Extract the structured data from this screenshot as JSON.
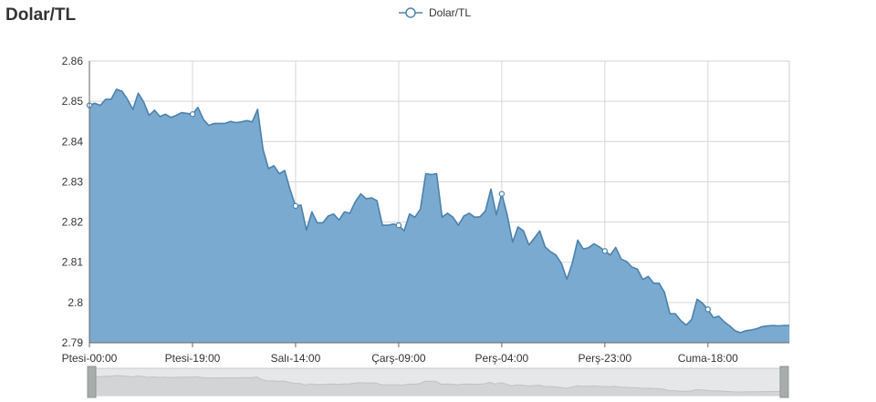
{
  "page": {
    "title": "Dolar/TL"
  },
  "chart_data": {
    "type": "area",
    "title": "Dolar/TL",
    "xlabel": "",
    "ylabel": "",
    "ylim": [
      2.79,
      2.86
    ],
    "y_ticks": [
      "2.86",
      "2.85",
      "2.84",
      "2.83",
      "2.82",
      "2.81",
      "2.8",
      "2.79"
    ],
    "y_tick_values": [
      2.86,
      2.85,
      2.84,
      2.83,
      2.82,
      2.81,
      2.8,
      2.79
    ],
    "x_ticks": [
      "Ptesi-00:00",
      "Ptesi-19:00",
      "Salı-14:00",
      "Çarş-09:00",
      "Perş-04:00",
      "Perş-23:00",
      "Cuma-18:00"
    ],
    "x_tick_values": [
      0,
      19,
      38,
      57,
      76,
      95,
      114
    ],
    "xlim": [
      0,
      129
    ],
    "grid": true,
    "legend": {
      "position": "top-center"
    },
    "series": [
      {
        "name": "Dolar/TL",
        "color": "#4a82ad",
        "fill": "#7aaad0",
        "marker_x": [
          0,
          19,
          38,
          57,
          76,
          95,
          114
        ],
        "x": [
          0,
          1,
          2,
          3,
          4,
          5,
          6,
          7,
          8,
          9,
          10,
          11,
          12,
          13,
          14,
          15,
          16,
          17,
          18,
          19,
          20,
          21,
          22,
          23,
          24,
          25,
          26,
          27,
          28,
          29,
          30,
          31,
          32,
          33,
          34,
          35,
          36,
          37,
          38,
          39,
          40,
          41,
          42,
          43,
          44,
          45,
          46,
          47,
          48,
          49,
          50,
          51,
          52,
          53,
          54,
          55,
          56,
          57,
          58,
          59,
          60,
          61,
          62,
          63,
          64,
          65,
          66,
          67,
          68,
          69,
          70,
          71,
          72,
          73,
          74,
          75,
          76,
          77,
          78,
          79,
          80,
          81,
          82,
          83,
          84,
          85,
          86,
          87,
          88,
          89,
          90,
          91,
          92,
          93,
          94,
          95,
          96,
          97,
          98,
          99,
          100,
          101,
          102,
          103,
          104,
          105,
          106,
          107,
          108,
          109,
          110,
          111,
          112,
          113,
          114,
          115,
          116,
          117,
          118,
          119,
          120,
          121,
          122,
          123,
          124,
          125,
          126,
          127,
          128,
          129
        ],
        "values": [
          2.849,
          2.8495,
          2.849,
          2.8505,
          2.8505,
          2.853,
          2.8525,
          2.8505,
          2.848,
          2.852,
          2.8498,
          2.8465,
          2.8478,
          2.8462,
          2.8468,
          2.846,
          2.8465,
          2.8472,
          2.847,
          2.8468,
          2.8485,
          2.8455,
          2.844,
          2.8445,
          2.8445,
          2.8445,
          2.845,
          2.8447,
          2.8449,
          2.8452,
          2.8449,
          2.848,
          2.838,
          2.8333,
          2.834,
          2.832,
          2.8328,
          2.828,
          2.824,
          2.8242,
          2.818,
          2.8225,
          2.8198,
          2.8198,
          2.8215,
          2.822,
          2.8205,
          2.8225,
          2.8222,
          2.825,
          2.827,
          2.8258,
          2.826,
          2.8253,
          2.8192,
          2.8192,
          2.8195,
          2.8192,
          2.8178,
          2.822,
          2.8212,
          2.8232,
          2.832,
          2.8318,
          2.832,
          2.8212,
          2.8222,
          2.8212,
          2.8192,
          2.8215,
          2.8222,
          2.8212,
          2.8213,
          2.8228,
          2.8282,
          2.8218,
          2.827,
          2.8218,
          2.815,
          2.8188,
          2.8178,
          2.8143,
          2.816,
          2.8178,
          2.8138,
          2.8126,
          2.8118,
          2.8097,
          2.8058,
          2.8098,
          2.8155,
          2.8133,
          2.8136,
          2.8146,
          2.8138,
          2.8128,
          2.8118,
          2.8137,
          2.8108,
          2.8102,
          2.8088,
          2.8083,
          2.8057,
          2.8065,
          2.8048,
          2.8048,
          2.8025,
          2.7972,
          2.7972,
          2.7955,
          2.7944,
          2.7958,
          2.8008,
          2.7998,
          2.7983,
          2.7962,
          2.7966,
          2.7952,
          2.7942,
          2.793,
          2.7925,
          2.793,
          2.7932,
          2.7935,
          2.794,
          2.7942,
          2.7943,
          2.7942,
          2.7943,
          2.7943
        ]
      }
    ]
  }
}
